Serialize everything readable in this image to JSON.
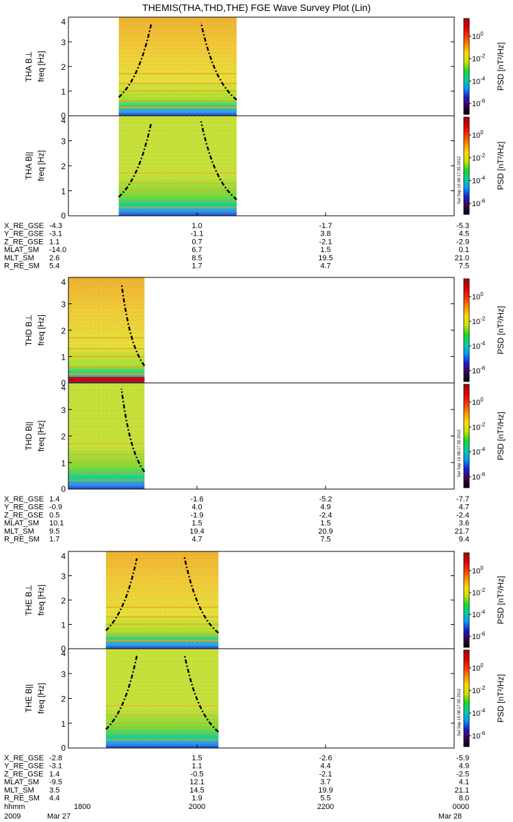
{
  "title": "THEMIS(THA,THD,THE) FGE Wave Survey Plot (Lin)",
  "freq_axis_label": "freq [Hz]",
  "freq_ticks": [
    "0",
    "1",
    "2",
    "3",
    "4"
  ],
  "colorbar": {
    "label": "PSD [nT²/Hz]",
    "tick_exponents": [
      "0",
      "-2",
      "-4",
      "-6"
    ],
    "colors": [
      "#000000",
      "#3c0050",
      "#1e1ed2",
      "#00a0ff",
      "#00d2a0",
      "#19dc1e",
      "#c8e600",
      "#ffdc00",
      "#ff8c00",
      "#ff3200",
      "#dc0000",
      "#aa0000"
    ]
  },
  "timestamp": "Sat Sep 15 06:17:35 2012",
  "time_axis": {
    "ticks": [
      "1800",
      "2000",
      "2200",
      "0000"
    ],
    "row_label": "hhmm",
    "year": "2009",
    "date_start": "Mar 27",
    "date_end": "Mar 28"
  },
  "chart_data": [
    {
      "probe": "THA",
      "type": "heatmap",
      "panels": [
        {
          "label": "THA B⊥",
          "x_range": [
            "1847",
            "2037"
          ],
          "ylim": [
            0,
            4
          ]
        },
        {
          "label": "THA B||",
          "x_range": [
            "1847",
            "2037"
          ],
          "ylim": [
            0,
            4
          ]
        }
      ],
      "ephemeris": [
        {
          "name": "X_RE_GSE",
          "values": [
            "-4.3",
            "1.0",
            "-1.7",
            "-5.3"
          ]
        },
        {
          "name": "Y_RE_GSE",
          "values": [
            "-3.1",
            "-1.1",
            "3.8",
            "4.5"
          ]
        },
        {
          "name": "Z_RE_GSE",
          "values": [
            "1.1",
            "0.7",
            "-2.1",
            "-2.9"
          ]
        },
        {
          "name": "MLAT_SM",
          "values": [
            "-14.0",
            "6.7",
            "1.5",
            "0.1"
          ]
        },
        {
          "name": "MLT_SM",
          "values": [
            "2.6",
            "8.5",
            "19.5",
            "21.0"
          ]
        },
        {
          "name": "R_RE_SM",
          "values": [
            "5.4",
            "1.7",
            "4.7",
            "7.5"
          ]
        }
      ]
    },
    {
      "probe": "THD",
      "type": "heatmap",
      "panels": [
        {
          "label": "THD B⊥",
          "x_range": [
            "1800",
            "1911"
          ],
          "ylim": [
            0,
            4
          ]
        },
        {
          "label": "THD B||",
          "x_range": [
            "1800",
            "1911"
          ],
          "ylim": [
            0,
            4
          ]
        }
      ],
      "ephemeris": [
        {
          "name": "X_RE_GSE",
          "values": [
            "1.4",
            "-1.6",
            "-5.2",
            "-7.7"
          ]
        },
        {
          "name": "Y_RE_GSE",
          "values": [
            "-0.9",
            "4.0",
            "4.9",
            "4.7"
          ]
        },
        {
          "name": "Z_RE_GSE",
          "values": [
            "0.5",
            "-1.9",
            "-2.4",
            "-2.4"
          ]
        },
        {
          "name": "MLAT_SM",
          "values": [
            "10.1",
            "1.5",
            "1.5",
            "3.6"
          ]
        },
        {
          "name": "MLT_SM",
          "values": [
            "9.5",
            "19.4",
            "20.9",
            "21.7"
          ]
        },
        {
          "name": "R_RE_SM",
          "values": [
            "1.7",
            "4.7",
            "7.5",
            "9.4"
          ]
        }
      ]
    },
    {
      "probe": "THE",
      "type": "heatmap",
      "panels": [
        {
          "label": "THE B⊥",
          "x_range": [
            "1835",
            "2020"
          ],
          "ylim": [
            0,
            4
          ]
        },
        {
          "label": "THE B||",
          "x_range": [
            "1835",
            "2020"
          ],
          "ylim": [
            0,
            4
          ]
        }
      ],
      "ephemeris": [
        {
          "name": "X_RE_GSE",
          "values": [
            "-2.8",
            "1.5",
            "-2.6",
            "-5.9"
          ]
        },
        {
          "name": "Y_RE_GSE",
          "values": [
            "-3.1",
            "1.1",
            "4.4",
            "4.9"
          ]
        },
        {
          "name": "Z_RE_GSE",
          "values": [
            "1.4",
            "-0.5",
            "-2.1",
            "-2.5"
          ]
        },
        {
          "name": "MLAT_SM",
          "values": [
            "-9.5",
            "12.1",
            "3.7",
            "4.1"
          ]
        },
        {
          "name": "MLT_SM",
          "values": [
            "3.5",
            "14.5",
            "19.9",
            "21.1"
          ]
        },
        {
          "name": "R_RE_SM",
          "values": [
            "4.4",
            "1.9",
            "5.5",
            "8.0"
          ]
        }
      ]
    }
  ]
}
